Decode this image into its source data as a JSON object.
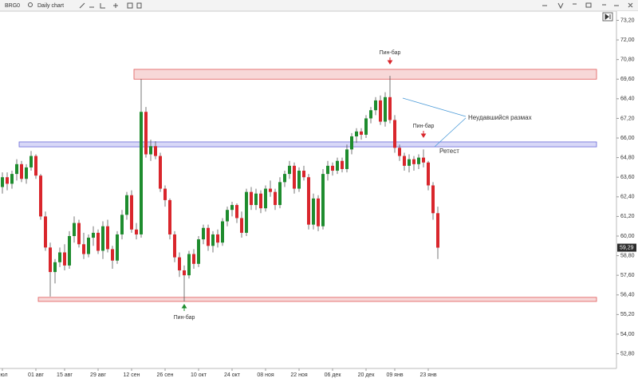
{
  "toolbar": {
    "symbol": "BRG0",
    "chart_name": "Daily chart"
  },
  "chart_data": {
    "type": "candlestick",
    "up_color": "#1e8c2e",
    "down_color": "#d9262c",
    "ohlc": [
      [
        63.0,
        63.9,
        62.6,
        63.6
      ],
      [
        63.6,
        63.9,
        62.8,
        63.2
      ],
      [
        63.2,
        64.0,
        62.9,
        63.8
      ],
      [
        63.8,
        64.7,
        63.4,
        64.4
      ],
      [
        64.4,
        64.6,
        63.3,
        63.5
      ],
      [
        63.5,
        64.4,
        63.2,
        64.2
      ],
      [
        64.2,
        65.2,
        64.0,
        64.9
      ],
      [
        64.9,
        65.0,
        63.5,
        63.7
      ],
      [
        63.7,
        63.8,
        61.0,
        61.2
      ],
      [
        61.2,
        61.5,
        59.1,
        59.3
      ],
      [
        59.3,
        59.6,
        56.3,
        57.8
      ],
      [
        57.8,
        58.6,
        57.1,
        58.4
      ],
      [
        58.4,
        59.3,
        58.1,
        59.0
      ],
      [
        59.0,
        59.5,
        57.9,
        58.2
      ],
      [
        58.2,
        60.3,
        58.0,
        60.0
      ],
      [
        60.0,
        61.2,
        59.6,
        60.8
      ],
      [
        60.8,
        61.0,
        59.3,
        59.5
      ],
      [
        59.5,
        60.2,
        58.6,
        58.9
      ],
      [
        58.9,
        60.1,
        58.7,
        59.9
      ],
      [
        59.9,
        60.6,
        59.4,
        60.2
      ],
      [
        60.2,
        60.4,
        58.9,
        59.1
      ],
      [
        59.1,
        60.9,
        58.6,
        60.6
      ],
      [
        60.6,
        61.0,
        59.0,
        59.2
      ],
      [
        59.2,
        59.4,
        58.0,
        58.5
      ],
      [
        58.5,
        60.3,
        58.3,
        60.1
      ],
      [
        60.1,
        61.6,
        59.8,
        61.3
      ],
      [
        61.3,
        62.7,
        61.0,
        62.5
      ],
      [
        62.5,
        62.8,
        60.2,
        60.4
      ],
      [
        60.4,
        60.8,
        59.8,
        60.1
      ],
      [
        60.1,
        69.6,
        59.9,
        67.6
      ],
      [
        67.6,
        67.9,
        64.8,
        65.0
      ],
      [
        65.0,
        65.9,
        64.6,
        65.5
      ],
      [
        65.5,
        65.8,
        64.7,
        64.9
      ],
      [
        64.9,
        65.1,
        62.7,
        62.9
      ],
      [
        62.9,
        63.1,
        61.8,
        62.2
      ],
      [
        62.2,
        62.3,
        59.8,
        60.1
      ],
      [
        60.1,
        60.3,
        58.4,
        58.7
      ],
      [
        58.7,
        59.0,
        57.5,
        57.9
      ],
      [
        57.9,
        58.2,
        56.0,
        57.6
      ],
      [
        57.6,
        59.1,
        57.4,
        58.9
      ],
      [
        58.9,
        59.2,
        58.0,
        58.3
      ],
      [
        58.3,
        60.0,
        58.1,
        59.8
      ],
      [
        59.8,
        60.7,
        59.5,
        60.5
      ],
      [
        60.5,
        60.7,
        59.1,
        59.4
      ],
      [
        59.4,
        60.3,
        59.0,
        60.1
      ],
      [
        60.1,
        60.4,
        59.3,
        59.6
      ],
      [
        59.6,
        61.1,
        59.4,
        60.9
      ],
      [
        60.9,
        61.8,
        60.6,
        61.6
      ],
      [
        61.6,
        62.1,
        61.2,
        61.9
      ],
      [
        61.9,
        62.0,
        60.8,
        61.1
      ],
      [
        61.1,
        61.5,
        59.9,
        60.2
      ],
      [
        60.2,
        62.9,
        60.0,
        62.7
      ],
      [
        62.7,
        63.0,
        61.6,
        61.9
      ],
      [
        61.9,
        62.9,
        61.6,
        62.6
      ],
      [
        62.6,
        62.8,
        61.4,
        61.7
      ],
      [
        61.7,
        63.1,
        61.5,
        62.9
      ],
      [
        62.9,
        63.4,
        62.4,
        62.7
      ],
      [
        62.7,
        62.9,
        61.6,
        61.9
      ],
      [
        61.9,
        63.6,
        61.7,
        63.3
      ],
      [
        63.3,
        64.0,
        63.0,
        63.8
      ],
      [
        63.8,
        64.6,
        63.5,
        64.3
      ],
      [
        64.3,
        64.5,
        62.6,
        62.9
      ],
      [
        62.9,
        64.2,
        62.7,
        64.0
      ],
      [
        64.0,
        64.3,
        63.4,
        63.6
      ],
      [
        63.6,
        63.8,
        60.4,
        60.7
      ],
      [
        60.7,
        62.6,
        60.4,
        62.3
      ],
      [
        62.3,
        62.5,
        60.3,
        60.6
      ],
      [
        60.6,
        64.1,
        60.4,
        63.8
      ],
      [
        63.8,
        64.6,
        63.4,
        64.3
      ],
      [
        64.3,
        64.5,
        63.7,
        64.0
      ],
      [
        64.0,
        64.8,
        63.8,
        64.6
      ],
      [
        64.6,
        64.8,
        63.9,
        64.1
      ],
      [
        64.1,
        65.6,
        63.9,
        65.3
      ],
      [
        65.3,
        66.3,
        65.0,
        66.1
      ],
      [
        66.1,
        66.6,
        65.7,
        66.4
      ],
      [
        66.4,
        66.6,
        65.9,
        66.2
      ],
      [
        66.2,
        67.4,
        66.0,
        67.2
      ],
      [
        67.2,
        67.9,
        66.9,
        67.7
      ],
      [
        67.7,
        68.5,
        67.4,
        68.3
      ],
      [
        68.3,
        68.6,
        66.8,
        67.0
      ],
      [
        67.0,
        68.8,
        66.7,
        68.5
      ],
      [
        68.5,
        69.8,
        66.9,
        67.1
      ],
      [
        67.1,
        67.4,
        65.1,
        65.4
      ],
      [
        65.4,
        65.6,
        64.6,
        64.9
      ],
      [
        64.9,
        65.1,
        64.0,
        64.3
      ],
      [
        64.3,
        65.0,
        63.9,
        64.7
      ],
      [
        64.7,
        64.9,
        64.0,
        64.4
      ],
      [
        64.4,
        65.0,
        64.1,
        64.8
      ],
      [
        64.8,
        65.3,
        64.2,
        64.5
      ],
      [
        64.5,
        64.6,
        62.8,
        63.1
      ],
      [
        63.1,
        63.3,
        61.0,
        61.4
      ],
      [
        61.4,
        61.8,
        58.6,
        59.29
      ]
    ],
    "last_price": {
      "value": 59.29,
      "label": "59,29"
    },
    "xlim": [
      -0.5,
      128.5
    ],
    "xticks": [
      {
        "value": 0,
        "label": "июл"
      },
      {
        "value": 7,
        "label": "01 авг"
      },
      {
        "value": 13,
        "label": "15 авг"
      },
      {
        "value": 20,
        "label": "29 авг"
      },
      {
        "value": 27,
        "label": "12 сен"
      },
      {
        "value": 34,
        "label": "26 сен"
      },
      {
        "value": 41,
        "label": "10 окт"
      },
      {
        "value": 48,
        "label": "24 окт"
      },
      {
        "value": 55,
        "label": "08 ноя"
      },
      {
        "value": 62,
        "label": "22 ноя"
      },
      {
        "value": 69,
        "label": "06 дек"
      },
      {
        "value": 76,
        "label": "20 дек"
      },
      {
        "value": 82,
        "label": "09 янв"
      },
      {
        "value": 89,
        "label": "23 янв"
      }
    ],
    "ylim": [
      51.9,
      73.76
    ],
    "yticks": [
      {
        "value": 52.8,
        "label": "52,80"
      },
      {
        "value": 54,
        "label": "54,00"
      },
      {
        "value": 55.2,
        "label": "55,20"
      },
      {
        "value": 56.4,
        "label": "56,40"
      },
      {
        "value": 57.6,
        "label": "57,60"
      },
      {
        "value": 58.8,
        "label": "58,80"
      },
      {
        "value": 60,
        "label": "60,00"
      },
      {
        "value": 61.2,
        "label": "61,20"
      },
      {
        "value": 62.4,
        "label": "62,40"
      },
      {
        "value": 63.6,
        "label": "63,60"
      },
      {
        "value": 64.8,
        "label": "64,80"
      },
      {
        "value": 66,
        "label": "66,00"
      },
      {
        "value": 67.2,
        "label": "67,20"
      },
      {
        "value": 68.4,
        "label": "68,40"
      },
      {
        "value": 69.6,
        "label": "69,60"
      },
      {
        "value": 70.8,
        "label": "70,80"
      },
      {
        "value": 72,
        "label": "72,00"
      },
      {
        "value": 73.2,
        "label": "73,20"
      }
    ],
    "zones": [
      {
        "range": [
          69.6,
          70.2
        ],
        "start": 27.5,
        "color": "#f4c8c8"
      },
      {
        "range": [
          65.46,
          65.76
        ],
        "start": 3.5,
        "color": "#c8c8f4"
      },
      {
        "range": [
          56.0,
          56.25
        ],
        "start": 7.5,
        "color": "#f4c8c8"
      }
    ],
    "annotations": [
      "Пин-бар",
      "Пин-бар",
      "Пин-бар",
      "Неудавшийся размах",
      "Ретест"
    ]
  }
}
